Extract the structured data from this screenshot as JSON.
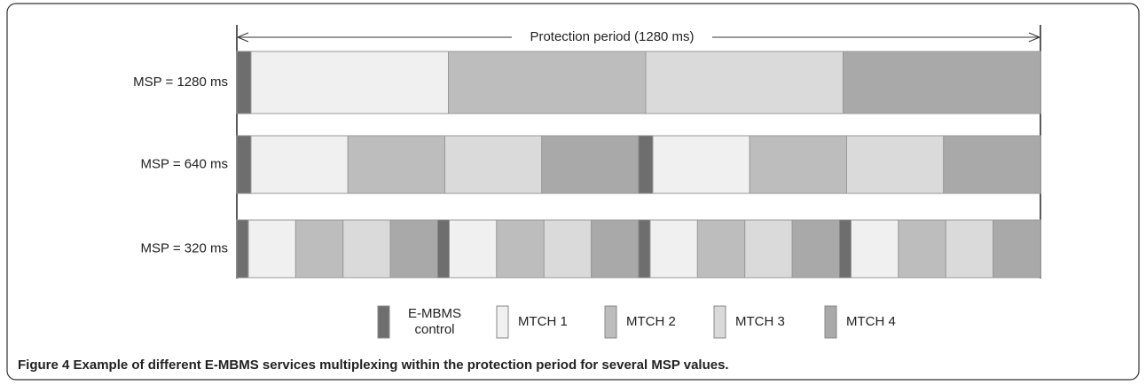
{
  "annotation": "Protection period (1280 ms)",
  "rows": [
    {
      "label": "MSP = 1280 ms"
    },
    {
      "label": "MSP = 640 ms"
    },
    {
      "label": "MSP = 320 ms"
    }
  ],
  "legend": [
    {
      "lines": [
        "E-MBMS",
        "control"
      ]
    },
    {
      "lines": [
        "MTCH 1"
      ]
    },
    {
      "lines": [
        "MTCH 2"
      ]
    },
    {
      "lines": [
        "MTCH 3"
      ]
    },
    {
      "lines": [
        "MTCH 4"
      ]
    }
  ],
  "caption": {
    "label": "Figure 4",
    "text": "Example of different E-MBMS services multiplexing within the protection period for several MSP values."
  }
}
